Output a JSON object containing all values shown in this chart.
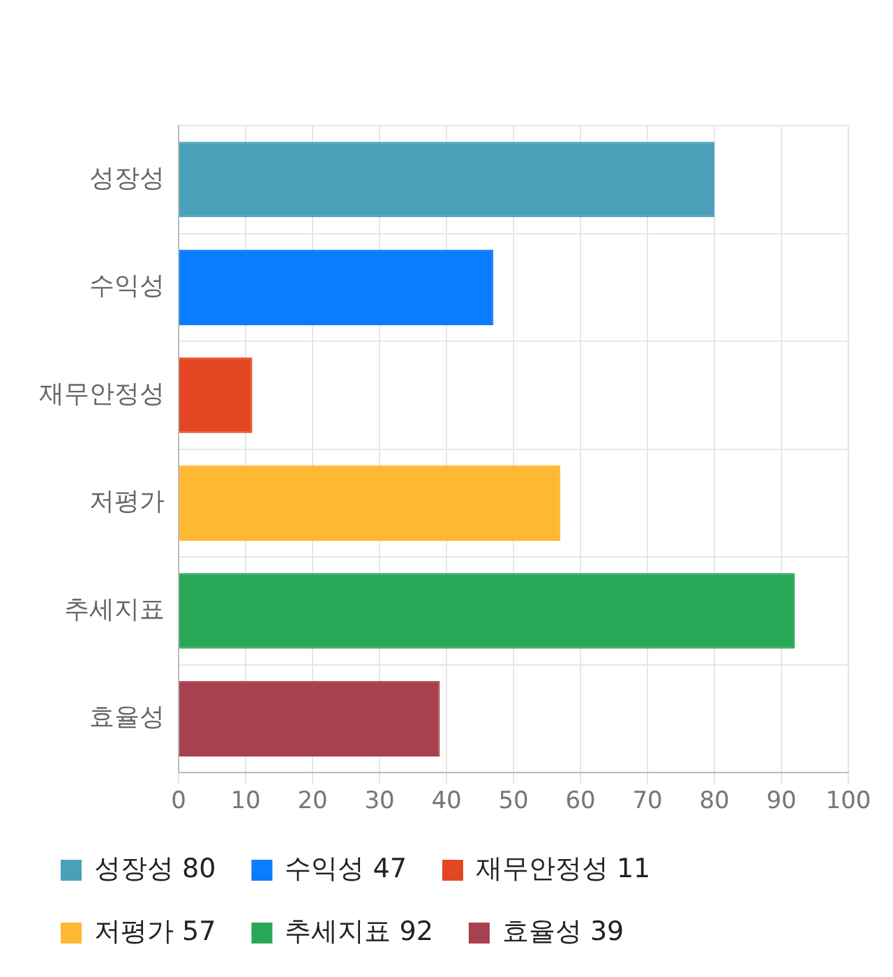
{
  "chart_data": {
    "type": "bar",
    "orientation": "horizontal",
    "categories": [
      "성장성",
      "수익성",
      "재무안정성",
      "저평가",
      "추세지표",
      "효율성"
    ],
    "series": [
      {
        "name": "성장성 80",
        "color": "#4aa0b9",
        "values": [
          80,
          null,
          null,
          null,
          null,
          null
        ]
      },
      {
        "name": "수익성 47",
        "color": "#0a7cff",
        "values": [
          null,
          47,
          null,
          null,
          null,
          null
        ]
      },
      {
        "name": "재무안정성 11",
        "color": "#e34622",
        "values": [
          null,
          null,
          11,
          null,
          null,
          null
        ]
      },
      {
        "name": "저평가 57",
        "color": "#ffb833",
        "values": [
          null,
          null,
          null,
          57,
          null,
          null
        ]
      },
      {
        "name": "추세지표 92",
        "color": "#28a757",
        "values": [
          null,
          null,
          null,
          null,
          92,
          null
        ]
      },
      {
        "name": "효율성 39",
        "color": "#a8404f",
        "values": [
          null,
          null,
          null,
          null,
          null,
          39
        ]
      }
    ],
    "xlim": [
      0,
      100
    ],
    "xticks": [
      0,
      10,
      20,
      30,
      40,
      50,
      60,
      70,
      80,
      90,
      100
    ],
    "grid": true,
    "legend": "bottom"
  }
}
